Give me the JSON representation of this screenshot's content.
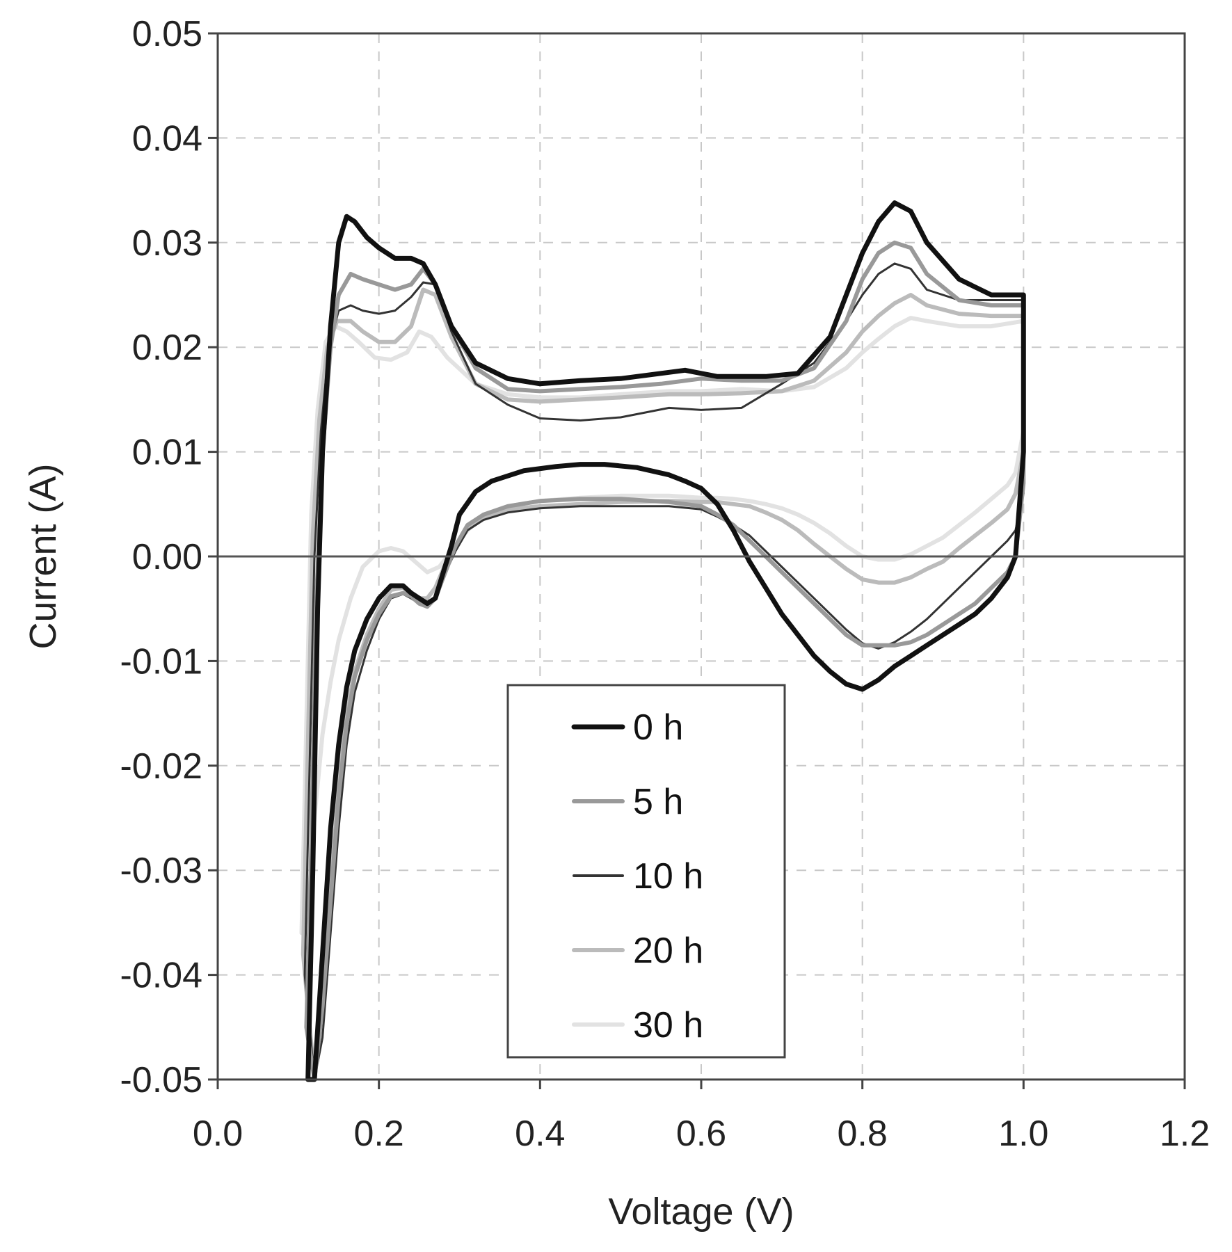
{
  "chart_data": {
    "type": "line",
    "title": "",
    "xlabel": "Voltage (V)",
    "ylabel": "Current (A)",
    "xlim": [
      0.0,
      1.2
    ],
    "ylim": [
      -0.05,
      0.05
    ],
    "x_ticks": [
      "0.0",
      "0.2",
      "0.4",
      "0.6",
      "0.8",
      "1.0",
      "1.2"
    ],
    "y_ticks": [
      "0.05",
      "0.04",
      "0.03",
      "0.02",
      "0.01",
      "0.00",
      "-0.01",
      "-0.02",
      "-0.03",
      "-0.04",
      "-0.05"
    ],
    "grid": true,
    "legend_position": "lower-center",
    "series": [
      {
        "name": "0 h",
        "color": "#111111",
        "width": 7,
        "x": [
          0.112,
          0.118,
          0.124,
          0.13,
          0.14,
          0.15,
          0.16,
          0.17,
          0.185,
          0.2,
          0.22,
          0.24,
          0.255,
          0.27,
          0.29,
          0.32,
          0.36,
          0.4,
          0.45,
          0.5,
          0.55,
          0.58,
          0.62,
          0.68,
          0.72,
          0.76,
          0.8,
          0.82,
          0.84,
          0.86,
          0.88,
          0.92,
          0.96,
          1.0,
          1.0,
          0.99,
          0.98,
          0.96,
          0.94,
          0.92,
          0.9,
          0.88,
          0.86,
          0.84,
          0.82,
          0.8,
          0.78,
          0.76,
          0.74,
          0.72,
          0.7,
          0.68,
          0.66,
          0.64,
          0.62,
          0.6,
          0.58,
          0.56,
          0.52,
          0.48,
          0.45,
          0.42,
          0.38,
          0.34,
          0.32,
          0.3,
          0.29,
          0.28,
          0.27,
          0.26,
          0.25,
          0.24,
          0.23,
          0.215,
          0.2,
          0.185,
          0.17,
          0.16,
          0.15,
          0.14,
          0.13,
          0.12
        ],
        "y": [
          -0.05,
          -0.03,
          -0.005,
          0.01,
          0.022,
          0.03,
          0.0325,
          0.032,
          0.0305,
          0.0295,
          0.0285,
          0.0285,
          0.028,
          0.026,
          0.022,
          0.0185,
          0.017,
          0.0165,
          0.0168,
          0.017,
          0.0175,
          0.0178,
          0.0172,
          0.0172,
          0.0175,
          0.021,
          0.029,
          0.032,
          0.0338,
          0.033,
          0.03,
          0.0265,
          0.025,
          0.025,
          0.01,
          0.0,
          -0.002,
          -0.004,
          -0.0055,
          -0.0065,
          -0.0075,
          -0.0085,
          -0.0095,
          -0.0105,
          -0.0118,
          -0.0127,
          -0.0122,
          -0.011,
          -0.0095,
          -0.0075,
          -0.0055,
          -0.003,
          -0.0005,
          0.0025,
          0.005,
          0.0065,
          0.0072,
          0.0078,
          0.0085,
          0.0088,
          0.0088,
          0.0086,
          0.0082,
          0.0072,
          0.0062,
          0.004,
          0.001,
          -0.0015,
          -0.004,
          -0.0045,
          -0.004,
          -0.0035,
          -0.0028,
          -0.0028,
          -0.004,
          -0.006,
          -0.009,
          -0.0125,
          -0.018,
          -0.026,
          -0.038,
          -0.05
        ]
      },
      {
        "name": "5 h",
        "color": "#999999",
        "width": 6,
        "x": [
          0.11,
          0.116,
          0.122,
          0.13,
          0.14,
          0.15,
          0.165,
          0.18,
          0.2,
          0.22,
          0.24,
          0.255,
          0.27,
          0.29,
          0.32,
          0.36,
          0.4,
          0.45,
          0.5,
          0.55,
          0.6,
          0.65,
          0.7,
          0.74,
          0.78,
          0.8,
          0.82,
          0.84,
          0.86,
          0.88,
          0.92,
          0.96,
          1.0,
          1.0,
          0.99,
          0.98,
          0.96,
          0.94,
          0.92,
          0.9,
          0.88,
          0.86,
          0.84,
          0.82,
          0.8,
          0.78,
          0.76,
          0.74,
          0.72,
          0.7,
          0.68,
          0.66,
          0.64,
          0.62,
          0.6,
          0.56,
          0.5,
          0.45,
          0.4,
          0.36,
          0.33,
          0.31,
          0.295,
          0.28,
          0.27,
          0.26,
          0.25,
          0.24,
          0.23,
          0.215,
          0.2,
          0.185,
          0.17,
          0.16,
          0.15,
          0.14,
          0.13,
          0.12
        ],
        "y": [
          -0.045,
          -0.028,
          -0.005,
          0.01,
          0.02,
          0.025,
          0.027,
          0.0265,
          0.026,
          0.0255,
          0.026,
          0.0275,
          0.026,
          0.022,
          0.018,
          0.016,
          0.0158,
          0.016,
          0.0162,
          0.0165,
          0.017,
          0.0168,
          0.0168,
          0.018,
          0.0225,
          0.0265,
          0.029,
          0.03,
          0.0295,
          0.027,
          0.0245,
          0.024,
          0.024,
          0.007,
          0.0,
          -0.0015,
          -0.003,
          -0.0045,
          -0.0055,
          -0.0065,
          -0.0075,
          -0.0082,
          -0.0085,
          -0.0085,
          -0.0085,
          -0.0075,
          -0.006,
          -0.0045,
          -0.003,
          -0.0015,
          0.0,
          0.0015,
          0.003,
          0.004,
          0.0048,
          0.0052,
          0.0055,
          0.0055,
          0.0053,
          0.0048,
          0.004,
          0.003,
          0.001,
          -0.002,
          -0.004,
          -0.0048,
          -0.0045,
          -0.0038,
          -0.0035,
          -0.0038,
          -0.0055,
          -0.008,
          -0.0115,
          -0.016,
          -0.023,
          -0.033,
          -0.043,
          -0.05
        ]
      },
      {
        "name": "10 h",
        "color": "#333333",
        "width": 3,
        "x": [
          0.108,
          0.114,
          0.12,
          0.128,
          0.138,
          0.15,
          0.165,
          0.18,
          0.2,
          0.22,
          0.24,
          0.255,
          0.27,
          0.29,
          0.32,
          0.36,
          0.4,
          0.45,
          0.5,
          0.56,
          0.6,
          0.65,
          0.7,
          0.74,
          0.78,
          0.8,
          0.82,
          0.84,
          0.86,
          0.88,
          0.92,
          0.96,
          1.0,
          1.0,
          0.99,
          0.98,
          0.96,
          0.94,
          0.92,
          0.9,
          0.88,
          0.86,
          0.84,
          0.82,
          0.8,
          0.78,
          0.76,
          0.74,
          0.72,
          0.7,
          0.68,
          0.66,
          0.64,
          0.62,
          0.6,
          0.56,
          0.5,
          0.45,
          0.4,
          0.36,
          0.33,
          0.31,
          0.295,
          0.28,
          0.27,
          0.26,
          0.25,
          0.24,
          0.23,
          0.215,
          0.2,
          0.185,
          0.17,
          0.16,
          0.15,
          0.14,
          0.13,
          0.12
        ],
        "y": [
          -0.04,
          -0.02,
          0.0,
          0.012,
          0.02,
          0.0235,
          0.024,
          0.0235,
          0.0232,
          0.0235,
          0.0248,
          0.0262,
          0.026,
          0.0215,
          0.0165,
          0.0145,
          0.0132,
          0.013,
          0.0133,
          0.0142,
          0.014,
          0.0142,
          0.0165,
          0.0185,
          0.0225,
          0.025,
          0.027,
          0.028,
          0.0275,
          0.0255,
          0.0245,
          0.0245,
          0.0245,
          0.006,
          0.0025,
          0.0015,
          0.0,
          -0.0015,
          -0.003,
          -0.0045,
          -0.006,
          -0.0072,
          -0.0082,
          -0.0088,
          -0.0083,
          -0.007,
          -0.0055,
          -0.004,
          -0.0025,
          -0.001,
          0.0005,
          0.002,
          0.003,
          0.0038,
          0.0045,
          0.0048,
          0.0048,
          0.0048,
          0.0046,
          0.0042,
          0.0035,
          0.0025,
          0.0005,
          -0.002,
          -0.0038,
          -0.0045,
          -0.0045,
          -0.004,
          -0.0036,
          -0.004,
          -0.006,
          -0.009,
          -0.013,
          -0.018,
          -0.026,
          -0.036,
          -0.046,
          -0.05
        ]
      },
      {
        "name": "20 h",
        "color": "#bbbbbb",
        "width": 6,
        "x": [
          0.106,
          0.112,
          0.118,
          0.126,
          0.136,
          0.148,
          0.165,
          0.18,
          0.2,
          0.22,
          0.24,
          0.255,
          0.27,
          0.29,
          0.32,
          0.36,
          0.4,
          0.45,
          0.5,
          0.56,
          0.6,
          0.65,
          0.7,
          0.74,
          0.78,
          0.8,
          0.82,
          0.84,
          0.86,
          0.88,
          0.92,
          0.96,
          1.0,
          1.0,
          0.99,
          0.98,
          0.96,
          0.94,
          0.92,
          0.9,
          0.88,
          0.86,
          0.84,
          0.82,
          0.8,
          0.78,
          0.76,
          0.74,
          0.72,
          0.7,
          0.68,
          0.66,
          0.64,
          0.62,
          0.6,
          0.56,
          0.5,
          0.45,
          0.4,
          0.36,
          0.33,
          0.31,
          0.295,
          0.28,
          0.27,
          0.26,
          0.25,
          0.24,
          0.23,
          0.215,
          0.2,
          0.185,
          0.17,
          0.16,
          0.15,
          0.14,
          0.13,
          0.12
        ],
        "y": [
          -0.038,
          -0.018,
          0.002,
          0.013,
          0.02,
          0.0225,
          0.0225,
          0.0215,
          0.0205,
          0.0205,
          0.022,
          0.0255,
          0.025,
          0.021,
          0.0165,
          0.015,
          0.0148,
          0.015,
          0.0152,
          0.0155,
          0.0155,
          0.0156,
          0.0158,
          0.0168,
          0.0195,
          0.0215,
          0.023,
          0.0242,
          0.025,
          0.024,
          0.0232,
          0.023,
          0.023,
          0.01,
          0.006,
          0.0045,
          0.0032,
          0.002,
          0.0008,
          -0.0005,
          -0.0012,
          -0.002,
          -0.0025,
          -0.0025,
          -0.0022,
          -0.0012,
          0.0,
          0.0012,
          0.0025,
          0.0035,
          0.0042,
          0.0048,
          0.005,
          0.0052,
          0.0052,
          0.0053,
          0.0052,
          0.005,
          0.0048,
          0.0045,
          0.0038,
          0.0028,
          0.001,
          -0.0012,
          -0.003,
          -0.004,
          -0.004,
          -0.0035,
          -0.003,
          -0.0032,
          -0.005,
          -0.0075,
          -0.011,
          -0.015,
          -0.022,
          -0.032,
          -0.042,
          -0.05
        ]
      },
      {
        "name": "30 h",
        "color": "#e2e2e2",
        "width": 6,
        "x": [
          0.104,
          0.11,
          0.116,
          0.124,
          0.134,
          0.146,
          0.16,
          0.175,
          0.195,
          0.215,
          0.235,
          0.25,
          0.265,
          0.285,
          0.32,
          0.36,
          0.4,
          0.45,
          0.5,
          0.56,
          0.6,
          0.65,
          0.7,
          0.74,
          0.78,
          0.8,
          0.82,
          0.84,
          0.86,
          0.88,
          0.92,
          0.96,
          1.0,
          1.0,
          0.99,
          0.98,
          0.96,
          0.94,
          0.92,
          0.9,
          0.88,
          0.86,
          0.84,
          0.82,
          0.8,
          0.78,
          0.76,
          0.74,
          0.72,
          0.7,
          0.68,
          0.66,
          0.64,
          0.62,
          0.6,
          0.56,
          0.5,
          0.45,
          0.4,
          0.36,
          0.33,
          0.31,
          0.29,
          0.275,
          0.26,
          0.245,
          0.23,
          0.215,
          0.2,
          0.18,
          0.165,
          0.15,
          0.14,
          0.13,
          0.12,
          0.112
        ],
        "y": [
          -0.036,
          -0.016,
          0.004,
          0.014,
          0.0205,
          0.022,
          0.0215,
          0.0205,
          0.019,
          0.0188,
          0.0195,
          0.0215,
          0.021,
          0.019,
          0.0165,
          0.0155,
          0.0152,
          0.0152,
          0.0155,
          0.0158,
          0.0158,
          0.016,
          0.0158,
          0.0162,
          0.018,
          0.0195,
          0.0208,
          0.022,
          0.0228,
          0.0225,
          0.022,
          0.022,
          0.0225,
          0.012,
          0.008,
          0.0068,
          0.0055,
          0.0042,
          0.003,
          0.0018,
          0.001,
          0.0002,
          -0.0003,
          -0.0003,
          0.0,
          0.001,
          0.0022,
          0.0032,
          0.004,
          0.0046,
          0.005,
          0.0053,
          0.0055,
          0.0056,
          0.0056,
          0.0058,
          0.0058,
          0.0056,
          0.0053,
          0.0048,
          0.004,
          0.0025,
          0.0005,
          -0.001,
          -0.0015,
          -0.0005,
          0.0005,
          0.0008,
          0.0005,
          -0.001,
          -0.004,
          -0.008,
          -0.012,
          -0.017,
          -0.025,
          -0.034
        ]
      }
    ]
  }
}
